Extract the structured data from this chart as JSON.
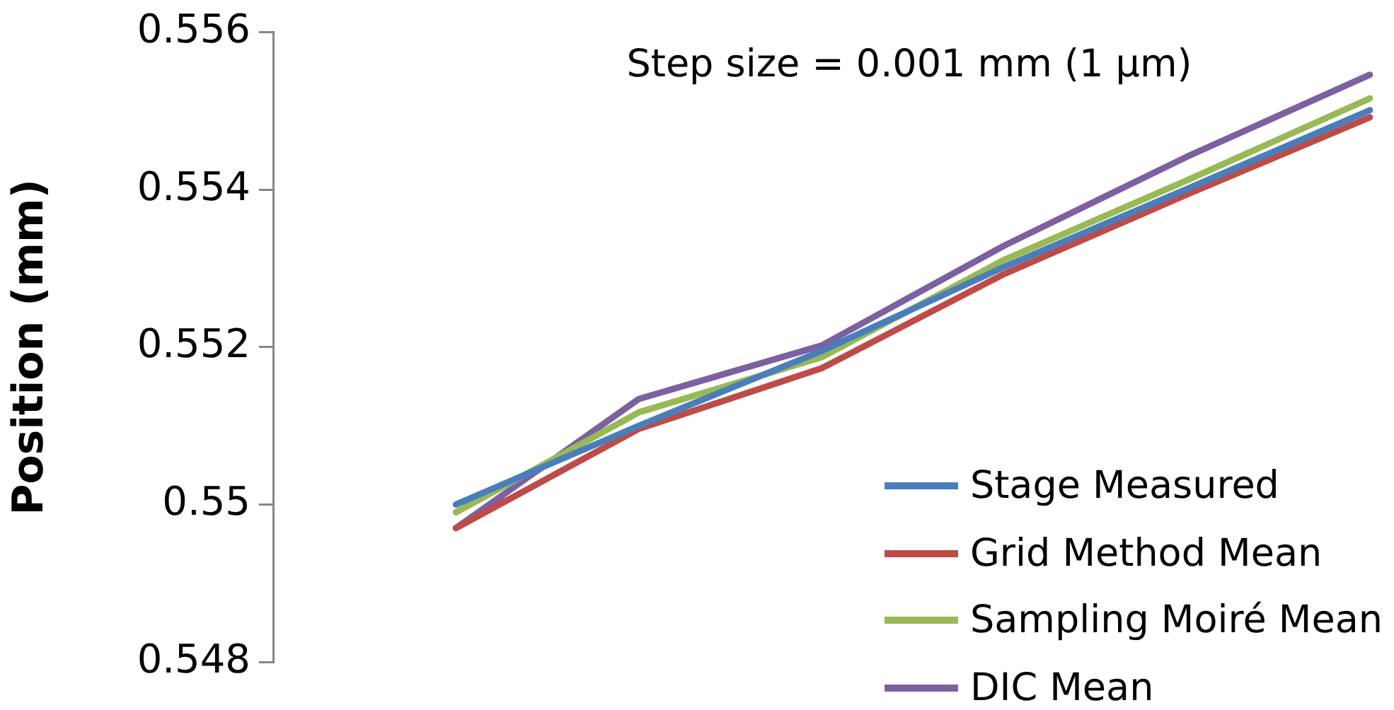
{
  "chart_data": {
    "type": "line",
    "ylabel": "Position (mm)",
    "annotations": [
      "Step size = 0.001 mm (1 µm)"
    ],
    "categories": [
      null,
      null,
      null,
      null,
      null,
      null,
      null
    ],
    "series": [
      {
        "name": "Stage Measured",
        "color": "#4a7ebb",
        "values": [
          null,
          0.55,
          0.551,
          0.55195,
          0.55302,
          0.55401,
          0.55501
        ]
      },
      {
        "name": "Grid Method Mean",
        "color": "#be4b48",
        "values": [
          null,
          0.5497,
          0.55096,
          0.55173,
          0.55293,
          0.55394,
          0.55492
        ]
      },
      {
        "name": "Sampling Moiré Mean",
        "color": "#98b954",
        "values": [
          null,
          0.5499,
          0.55117,
          0.55187,
          0.55311,
          0.55412,
          0.55516
        ]
      },
      {
        "name": "DIC Mean",
        "color": "#7d60a0",
        "values": [
          null,
          0.5497,
          0.55134,
          0.55202,
          0.55329,
          0.55442,
          0.55546
        ]
      }
    ],
    "ylim": [
      0.548,
      0.556
    ],
    "yticks": [
      0.548,
      0.55,
      0.552,
      0.554,
      0.556
    ],
    "grid": false,
    "legend": "bottom right",
    "marker": "none",
    "line_style": "solid",
    "tick_labels": "y"
  }
}
